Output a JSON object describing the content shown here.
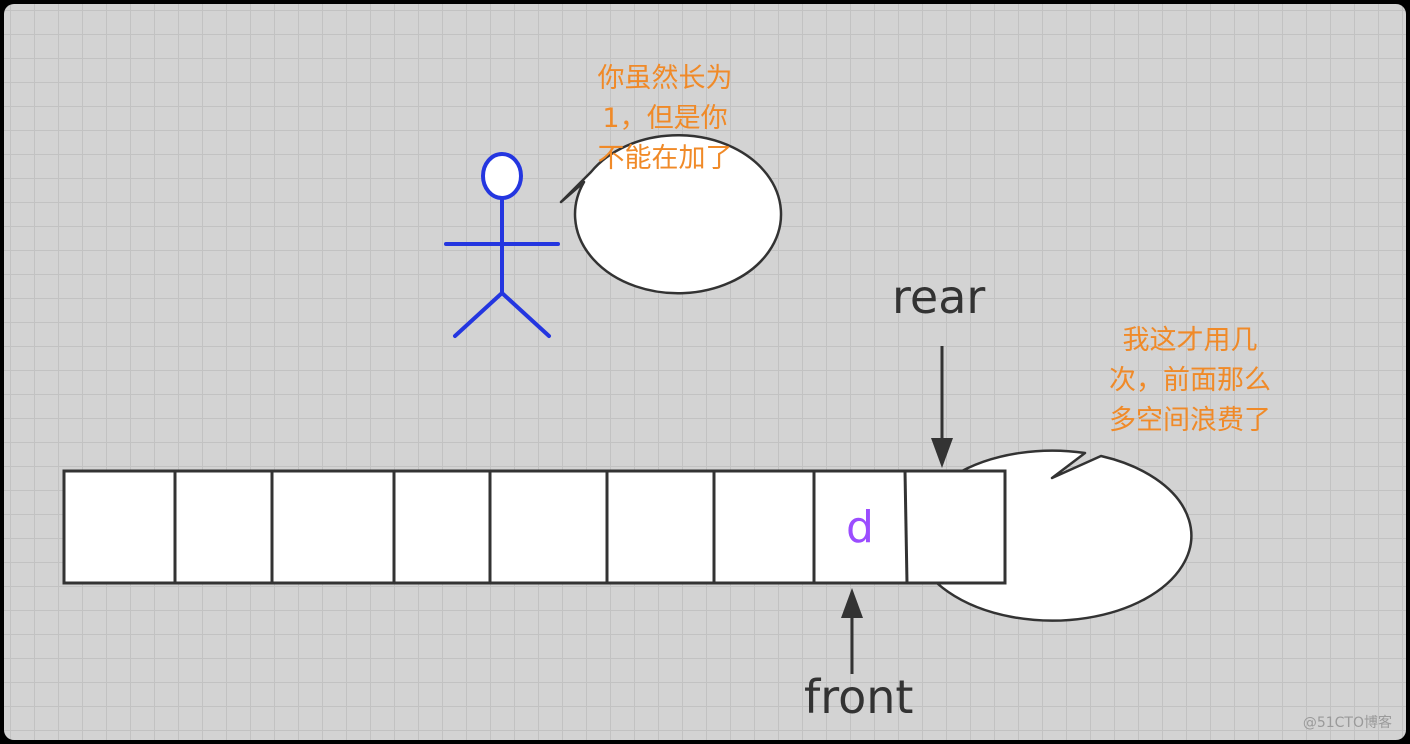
{
  "bubble_left": {
    "text": "你虽然长为\n1，但是你\n不能在加了"
  },
  "bubble_right": {
    "text": "我这才用几\n次，前面那么\n多空间浪费了"
  },
  "queue": {
    "cells": [
      "",
      "",
      "",
      "",
      "",
      "",
      "",
      "d",
      ""
    ],
    "rear_label": "rear",
    "front_label": "front"
  },
  "watermark": "@51CTO博客",
  "colors": {
    "bubble_text": "#f08a28",
    "stick_figure": "#2436e0",
    "cell_value": "#9b4dff",
    "label": "#333333",
    "grid_bg": "#d3d3d3"
  },
  "icons": {
    "figure": "stick-figure-icon",
    "rear_pointer": "arrow-down-icon",
    "front_pointer": "arrow-up-icon"
  }
}
